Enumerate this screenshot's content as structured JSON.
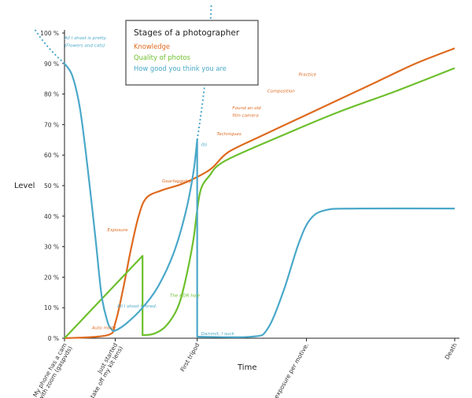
{
  "chart_data": {
    "type": "line",
    "title": "Stages of a photographer",
    "xlabel": "Time",
    "ylabel": "Level",
    "ylim": [
      0,
      100
    ],
    "y_ticks": [
      "0 %",
      "10 %",
      "20 %",
      "30 %",
      "40 %",
      "50 %",
      "60 %",
      "70 %",
      "80 %",
      "90 %",
      "100 %"
    ],
    "x_ticks": [
      {
        "label": "My phone has a cam",
        "sub": "... with zoom (gaspvds)"
      },
      {
        "label": "Just started",
        "sub": "(I can take off my kit lens)"
      },
      {
        "label": "First tripod",
        "sub": ""
      },
      {
        "label": "One exposure per motive.",
        "sub": ""
      },
      {
        "label": "Death",
        "sub": ""
      }
    ],
    "legend_position": "top-center",
    "grid": false,
    "series": [
      {
        "name": "Knowledge",
        "color": "#de6a1f",
        "points": [
          [
            0,
            0
          ],
          [
            11,
            1
          ],
          [
            13,
            5
          ],
          [
            15,
            16
          ],
          [
            17,
            29
          ],
          [
            19,
            40
          ],
          [
            21,
            46
          ],
          [
            25,
            48.5
          ],
          [
            30,
            50.5
          ],
          [
            35,
            53.5
          ],
          [
            38,
            56
          ],
          [
            42,
            61
          ],
          [
            50,
            66
          ],
          [
            60,
            72
          ],
          [
            70,
            78
          ],
          [
            80,
            84
          ],
          [
            90,
            90
          ],
          [
            100,
            95
          ]
        ]
      },
      {
        "name": "Quality of photos",
        "color": "#6dbf2c",
        "points": [
          [
            0,
            0
          ],
          [
            20,
            27
          ],
          [
            20,
            1
          ],
          [
            23,
            1.5
          ],
          [
            26,
            4
          ],
          [
            29,
            10
          ],
          [
            31,
            19
          ],
          [
            33,
            32
          ],
          [
            34,
            42
          ],
          [
            35,
            49
          ],
          [
            37,
            53
          ],
          [
            41,
            58
          ],
          [
            55,
            66
          ],
          [
            70,
            74
          ],
          [
            85,
            81
          ],
          [
            100,
            88.5
          ]
        ]
      },
      {
        "name": "How good you think you are",
        "color": "#4aa8c9",
        "points": [
          [
            0,
            90
          ],
          [
            2,
            86
          ],
          [
            4,
            75
          ],
          [
            6,
            55
          ],
          [
            8,
            32
          ],
          [
            9.5,
            14
          ],
          [
            11,
            5.5
          ],
          [
            12,
            3
          ],
          [
            13,
            2.5
          ],
          [
            16,
            5
          ],
          [
            20,
            10
          ],
          [
            24,
            17
          ],
          [
            28,
            28
          ],
          [
            31,
            41
          ],
          [
            33,
            54
          ],
          [
            34,
            65
          ],
          [
            34,
            0.5
          ],
          [
            48,
            0.5
          ],
          [
            52,
            3
          ],
          [
            56,
            15
          ],
          [
            60,
            31
          ],
          [
            63,
            39
          ],
          [
            67,
            42
          ],
          [
            75,
            42.5
          ],
          [
            100,
            42.5
          ]
        ]
      }
    ],
    "annotations": [
      {
        "text": "All I shoot is pretty.",
        "color": "#4aa8c9",
        "x": 0,
        "y": 98
      },
      {
        "text": "(Flowers and cats)",
        "color": "#4aa8c9",
        "x": 0,
        "y": 95.5
      },
      {
        "text": "Auto mode",
        "color": "#de6a1f",
        "x": 7,
        "y": 3
      },
      {
        "text": "Exposure",
        "color": "#de6a1f",
        "x": 11,
        "y": 35
      },
      {
        "text": "Gearfaggotry",
        "color": "#de6a1f",
        "x": 25,
        "y": 51
      },
      {
        "text": "All I shoot is tired.",
        "color": "#4aa8c9",
        "x": 13.5,
        "y": 10
      },
      {
        "text": "The HDR hole",
        "color": "#6dbf2c",
        "x": 27,
        "y": 13.5
      },
      {
        "text": "(b)",
        "color": "#4aa8c9",
        "x": 35,
        "y": 63
      },
      {
        "text": "Dammit, I suck",
        "color": "#4aa8c9",
        "x": 35,
        "y": 1
      },
      {
        "text": "Techniques",
        "color": "#de6a1f",
        "x": 39,
        "y": 66.5
      },
      {
        "text": "Found an old",
        "color": "#de6a1f",
        "x": 43,
        "y": 75
      },
      {
        "text": "film camera",
        "color": "#de6a1f",
        "x": 43,
        "y": 72.5
      },
      {
        "text": "Composition",
        "color": "#de6a1f",
        "x": 52,
        "y": 80.5
      },
      {
        "text": "Practice",
        "color": "#de6a1f",
        "x": 60,
        "y": 86
      }
    ]
  }
}
